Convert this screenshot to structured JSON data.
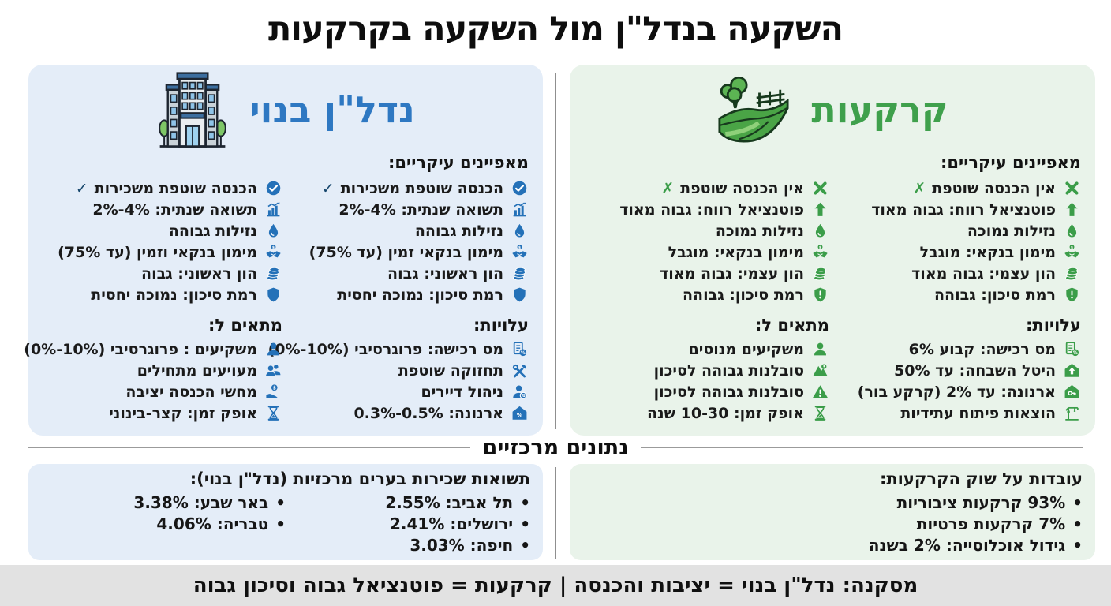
{
  "title": "השקעה בנדל\"ן מול השקעה בקרקעות",
  "divider_heading": "נתונים מרכזיים",
  "conclusion": "מסקנה: נדל\"ן בנוי = יציבות והכנסה | קרקעות = פוטנציאל גבוה וסיכון גבוה",
  "ui": {
    "bullet": "•"
  },
  "built": {
    "title": "נדל\"ן בנוי",
    "accent": "#2471b8",
    "title_color": "#2e78c2",
    "bg": "#e4edf8",
    "characteristics_heading": "מאפיינים עיקריים:",
    "features_right": [
      {
        "icon": "check-circle",
        "text": "הכנסה שוטפת משכירות",
        "suffix": "✓",
        "suffix_color": "#17476d"
      },
      {
        "icon": "bar-chart",
        "text": "תשואה שנתית: ‪2%-4%‬"
      },
      {
        "icon": "droplet",
        "text": "נזילות גבוהה"
      },
      {
        "icon": "handshake-coin",
        "text": "מימון בנקאי זמין (עד 75%)"
      },
      {
        "icon": "coins",
        "text": "הון ראשוני: גבוה"
      },
      {
        "icon": "shield",
        "text": "רמת סיכון: נמוכה יחסית"
      }
    ],
    "features_left": [
      {
        "icon": "check-circle",
        "text": "הכנסה שוטפת משכירות",
        "suffix": "✓",
        "suffix_color": "#17476d"
      },
      {
        "icon": "bar-chart",
        "text": "תשואה שנתית: ‪2%-4%‬"
      },
      {
        "icon": "droplet",
        "text": "נזילות גבוהה"
      },
      {
        "icon": "handshake-coin",
        "text": "מימון בנקאי וזמין (עד 75%)"
      },
      {
        "icon": "coins",
        "text": "הון ראשוני: גבוה"
      },
      {
        "icon": "shield",
        "text": "רמת סיכון: נמוכה יחסית"
      }
    ],
    "costs": {
      "heading": "עלויות:",
      "items": [
        {
          "icon": "receipt-percent",
          "text": "מס רכישה: פרוגרסיבי (‪0%-10%‬)"
        },
        {
          "icon": "tools",
          "text": "תחזוקה שוטפת"
        },
        {
          "icon": "person-badge",
          "text": "ניהול דיירים"
        },
        {
          "icon": "house-percent",
          "text": "ארנונה: ‪0.3%-0.5%‬"
        }
      ]
    },
    "suitable": {
      "heading": "מתאים ל:",
      "items": [
        {
          "icon": "person",
          "text": "משקיעים : פרוגרסיבי (‪0%-10%‬)"
        },
        {
          "icon": "people",
          "text": "מעויעים מתחילים"
        },
        {
          "icon": "hand-dollar",
          "text": "מחשי הכנסה יציבה"
        },
        {
          "icon": "hourglass",
          "text": "אופק זמן: קצר-בינוני"
        }
      ]
    }
  },
  "land": {
    "title": "קרקעות",
    "accent": "#3b9d49",
    "title_color": "#3fa04c",
    "bg": "#e9f3ea",
    "characteristics_heading": "מאפיינים עיקריים:",
    "features_right": [
      {
        "icon": "x-mark",
        "text": "אין הכנסה שוטפת",
        "suffix": "✗",
        "suffix_color": "#3b9d49"
      },
      {
        "icon": "arrow-up",
        "text": "פוטנציאל רווח: גבוה מאוד"
      },
      {
        "icon": "droplet",
        "text": "נזילות נמוכה"
      },
      {
        "icon": "handshake-coin",
        "text": "מימון בנקאי: מוגבל"
      },
      {
        "icon": "coins",
        "text": "הון עצמי: גבוה מאוד"
      },
      {
        "icon": "shield-exclaim",
        "text": "רמת סיכון: גבוהה"
      }
    ],
    "features_left": [
      {
        "icon": "x-mark",
        "text": "אין הכנסה שוטפת",
        "suffix": "✗",
        "suffix_color": "#3b9d49"
      },
      {
        "icon": "arrow-up",
        "text": "פוטנציאל רווח: גבוה מאוד"
      },
      {
        "icon": "droplet",
        "text": "נזילות נמוכה"
      },
      {
        "icon": "handshake-coin",
        "text": "מימון בנקאי: מוגבל"
      },
      {
        "icon": "coins",
        "text": "הון עצמי: גבוה מאוד"
      },
      {
        "icon": "shield-exclaim",
        "text": "רמת סיכון: גבוהה"
      }
    ],
    "costs": {
      "heading": "עלויות:",
      "items": [
        {
          "icon": "receipt-percent",
          "text": "מס רכישה: קבוע 6%"
        },
        {
          "icon": "house-up",
          "text": "היטל השבחה: עד 50%"
        },
        {
          "icon": "house-key",
          "text": "ארנונה: עד 2% (קרקע בור)"
        },
        {
          "icon": "crane",
          "text": "הוצאות פיתוח עתידיות"
        }
      ]
    },
    "suitable": {
      "heading": "מתאים ל:",
      "items": [
        {
          "icon": "person",
          "text": "משקיעים מנוסים"
        },
        {
          "icon": "mountain-warning",
          "text": "סובלנות גבוהה לסיכון"
        },
        {
          "icon": "triangle-warning",
          "text": "סובלנות גבוהה לסיכון"
        },
        {
          "icon": "hourglass",
          "text": "אופק זמן: 10-30 שנה"
        }
      ]
    }
  },
  "stats_built": {
    "heading": "תשואות שכירות בערים מרכזיות (נדל\"ן בנוי):",
    "col_right": [
      "תל אביב: 2.55%",
      "ירושלים: 2.41%",
      "חיפה: 3.03%"
    ],
    "col_left": [
      "באר שבע: 3.38%",
      "טבריה: 4.06%"
    ]
  },
  "stats_land": {
    "heading": "עובדות על שוק הקרקעות:",
    "items": [
      "93% קרקעות ציבוריות",
      "7% קרקעות פרטיות",
      "גידול אוכלוסייה: 2% בשנה"
    ]
  }
}
